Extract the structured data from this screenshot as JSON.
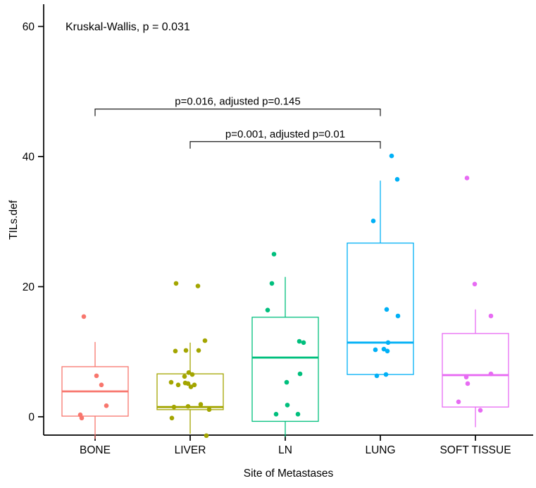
{
  "figure": {
    "kruskal_annotation": "Kruskal-Wallis, p = 0.031"
  },
  "chart_data": {
    "type": "boxplot",
    "title": "",
    "xlabel": "Site of Metastases",
    "ylabel": "TILs.def",
    "annotation": "Kruskal-Wallis, p = 0.031",
    "y_ticks": [
      0,
      20,
      40,
      60
    ],
    "ylim": [
      -4.5,
      63.2
    ],
    "grid": false,
    "legend": "none",
    "categories": [
      "BONE",
      "LIVER",
      "LN",
      "LUNG",
      "SOFT TISSUE"
    ],
    "groups": [
      {
        "name": "BONE",
        "color": "#F8766D",
        "box": {
          "q1": 0.1,
          "median": 3.9,
          "q3": 7.7,
          "whisker_low": -3.4,
          "whisker_high": 11.5
        },
        "points": [
          {
            "dx": -16,
            "v": 15.4
          },
          {
            "dx": 2,
            "v": 6.3
          },
          {
            "dx": 9,
            "v": 4.9
          },
          {
            "dx": 16,
            "v": 1.7
          },
          {
            "dx": -21,
            "v": 0.3
          },
          {
            "dx": -19,
            "v": -0.2
          }
        ]
      },
      {
        "name": "LIVER",
        "color": "#A3A500",
        "box": {
          "q1": 1.1,
          "median": 1.5,
          "q3": 6.6,
          "whisker_low": -2.6,
          "whisker_high": 11.4
        },
        "points": [
          {
            "dx": -20,
            "v": 20.5
          },
          {
            "dx": 11,
            "v": 20.1
          },
          {
            "dx": 21,
            "v": 11.7
          },
          {
            "dx": -21,
            "v": 10.1
          },
          {
            "dx": -6,
            "v": 10.2
          },
          {
            "dx": 12,
            "v": 10.2
          },
          {
            "dx": -2,
            "v": 6.8
          },
          {
            "dx": 3,
            "v": 6.5
          },
          {
            "dx": -8,
            "v": 6.2
          },
          {
            "dx": -27,
            "v": 5.3
          },
          {
            "dx": -17,
            "v": 4.9
          },
          {
            "dx": -7,
            "v": 5.2
          },
          {
            "dx": -3,
            "v": 5.1
          },
          {
            "dx": 6,
            "v": 4.9
          },
          {
            "dx": 1,
            "v": 4.6
          },
          {
            "dx": -26,
            "v": -0.2
          },
          {
            "dx": -23,
            "v": 1.5
          },
          {
            "dx": -3,
            "v": 1.6
          },
          {
            "dx": 15,
            "v": 1.9
          },
          {
            "dx": 27,
            "v": 1.1
          },
          {
            "dx": 23,
            "v": -2.9
          }
        ]
      },
      {
        "name": "LN",
        "color": "#00BF7D",
        "box": {
          "q1": -0.7,
          "median": 9.1,
          "q3": 15.3,
          "whisker_low": -3.1,
          "whisker_high": 21.5
        },
        "points": [
          {
            "dx": -16,
            "v": 25.0
          },
          {
            "dx": -19,
            "v": 20.5
          },
          {
            "dx": -25,
            "v": 16.4
          },
          {
            "dx": 20,
            "v": 11.6
          },
          {
            "dx": 26,
            "v": 11.4
          },
          {
            "dx": 21,
            "v": 6.6
          },
          {
            "dx": 2,
            "v": 5.3
          },
          {
            "dx": 3,
            "v": 1.8
          },
          {
            "dx": -13,
            "v": 0.4
          },
          {
            "dx": 18,
            "v": 0.4
          }
        ]
      },
      {
        "name": "LUNG",
        "color": "#00B0F6",
        "box": {
          "q1": 6.5,
          "median": 11.4,
          "q3": 26.7,
          "whisker_low": 6.5,
          "whisker_high": 36.3
        },
        "points": [
          {
            "dx": 16,
            "v": 40.1
          },
          {
            "dx": 24,
            "v": 36.5
          },
          {
            "dx": -10,
            "v": 30.1
          },
          {
            "dx": 9,
            "v": 16.5
          },
          {
            "dx": 25,
            "v": 15.5
          },
          {
            "dx": 11,
            "v": 11.4
          },
          {
            "dx": -7,
            "v": 10.3
          },
          {
            "dx": 5,
            "v": 10.4
          },
          {
            "dx": 10,
            "v": 10.1
          },
          {
            "dx": -5,
            "v": 6.3
          },
          {
            "dx": 8,
            "v": 6.5
          }
        ]
      },
      {
        "name": "SOFT TISSUE",
        "color": "#E76BF3",
        "box": {
          "q1": 1.5,
          "median": 6.4,
          "q3": 12.8,
          "whisker_low": -1.6,
          "whisker_high": 16.5
        },
        "points": [
          {
            "dx": -12,
            "v": 36.7
          },
          {
            "dx": -1,
            "v": 20.4
          },
          {
            "dx": 22,
            "v": 15.5
          },
          {
            "dx": 22,
            "v": 6.6
          },
          {
            "dx": -13,
            "v": 6.1
          },
          {
            "dx": -11,
            "v": 5.1
          },
          {
            "dx": -24,
            "v": 2.3
          },
          {
            "dx": 7,
            "v": 1.0
          }
        ]
      }
    ],
    "comparisons": [
      {
        "label": "p=0.016, adjusted p=0.145",
        "from": "BONE",
        "to": "LUNG",
        "y_value": 47.3
      },
      {
        "label": "p=0.001, adjusted p=0.01",
        "from": "LIVER",
        "to": "LUNG",
        "y_value": 42.3
      }
    ]
  }
}
